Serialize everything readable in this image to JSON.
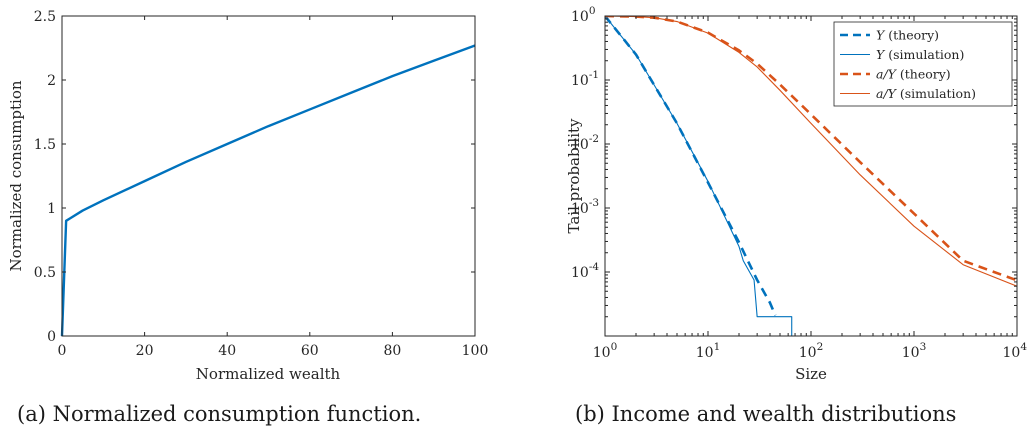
{
  "captions": {
    "a": "(a) Normalized consumption function.",
    "b": "(b) Income and wealth distributions"
  },
  "colors": {
    "blue": "#0072BD",
    "orange": "#D95319"
  },
  "chart_data": [
    {
      "type": "line",
      "xlabel": "Normalized wealth",
      "ylabel": "Normalized consumption",
      "xlim": [
        0,
        100
      ],
      "ylim": [
        0,
        2.5
      ],
      "xticks": [
        "0",
        "20",
        "40",
        "60",
        "80",
        "100"
      ],
      "yticks": [
        "0",
        "0.5",
        "1",
        "1.5",
        "2",
        "2.5"
      ],
      "series": [
        {
          "x": [
            0,
            1,
            2,
            5,
            10,
            20,
            30,
            40,
            50,
            60,
            70,
            80,
            90,
            100
          ],
          "y": [
            0,
            0.9,
            0.92,
            0.98,
            1.06,
            1.21,
            1.36,
            1.5,
            1.64,
            1.77,
            1.9,
            2.03,
            2.15,
            2.27
          ]
        }
      ]
    },
    {
      "type": "line",
      "xscale": "log",
      "yscale": "log",
      "xlabel": "Size",
      "ylabel": "Tail probability",
      "xlim": [
        1,
        10000
      ],
      "ylim": [
        1e-05,
        1
      ],
      "xticks": [
        {
          "base": "10",
          "exp": "0"
        },
        {
          "base": "10",
          "exp": "1"
        },
        {
          "base": "10",
          "exp": "2"
        },
        {
          "base": "10",
          "exp": "3"
        },
        {
          "base": "10",
          "exp": "4"
        }
      ],
      "yticks": [
        {
          "base": "10",
          "exp": "-4"
        },
        {
          "base": "10",
          "exp": "-3"
        },
        {
          "base": "10",
          "exp": "-2"
        },
        {
          "base": "10",
          "exp": "-1"
        },
        {
          "base": "10",
          "exp": "0"
        }
      ],
      "legend_position": "top-right",
      "series": [
        {
          "name": "Y (theory)",
          "label_var": "Y",
          "label_suffix": " (theory)",
          "style": "dashed",
          "color": "blue",
          "x": [
            1,
            2,
            5,
            10,
            20,
            30,
            40,
            45
          ],
          "y": [
            1,
            0.25,
            0.021,
            0.0025,
            0.00029,
            7.5e-05,
            3.3e-05,
            2.1e-05
          ]
        },
        {
          "name": "Y (simulation)",
          "label_var": "Y",
          "label_suffix": " (simulation)",
          "style": "solid",
          "color": "blue",
          "x": [
            1,
            2,
            5,
            10,
            20,
            22,
            28,
            30,
            40,
            65,
            65
          ],
          "y": [
            1,
            0.25,
            0.021,
            0.0026,
            0.00025,
            0.00015,
            7.5e-05,
            2e-05,
            2e-05,
            2e-05,
            1e-05
          ]
        },
        {
          "name": "a/Y (theory)",
          "label_var": "a/Y",
          "label_suffix": " (theory)",
          "style": "dashed",
          "color": "orange",
          "x": [
            1,
            2,
            3,
            5,
            10,
            20,
            30,
            50,
            100,
            300,
            1000,
            3000,
            10000
          ],
          "y": [
            1,
            0.98,
            0.94,
            0.82,
            0.55,
            0.29,
            0.18,
            0.085,
            0.029,
            0.0052,
            0.00082,
            0.00015,
            7.4e-05
          ]
        },
        {
          "name": "a/Y (simulation)",
          "label_var": "a/Y",
          "label_suffix": " (simulation)",
          "style": "solid",
          "color": "orange",
          "x": [
            1,
            2,
            3,
            5,
            10,
            20,
            30,
            50,
            100,
            300,
            1000,
            3000,
            10000
          ],
          "y": [
            1,
            0.98,
            0.94,
            0.82,
            0.54,
            0.27,
            0.16,
            0.069,
            0.021,
            0.0033,
            0.00052,
            0.00013,
            6e-05
          ]
        }
      ]
    }
  ]
}
